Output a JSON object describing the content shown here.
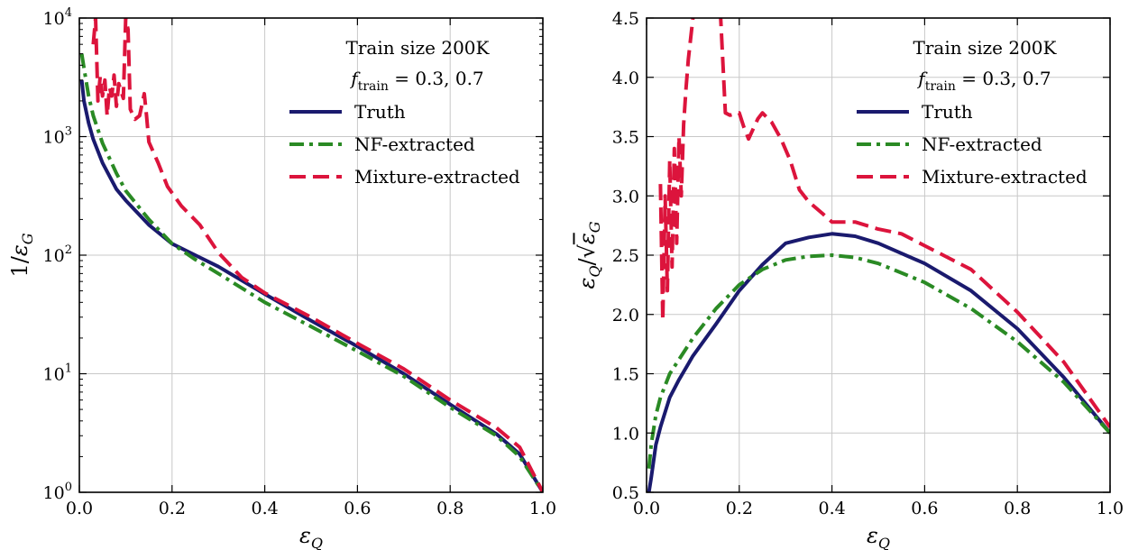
{
  "colors": {
    "truth": "#1a1a6e",
    "nf": "#2a8a24",
    "mixture": "#dc143c"
  },
  "chart_data": [
    {
      "type": "line",
      "title": "",
      "xlabel": "εQ",
      "ylabel": "1/εG",
      "yscale": "log",
      "xlim": [
        0.0,
        1.0
      ],
      "ylim": [
        1,
        10000
      ],
      "grid": true,
      "legend_placement": "top-right",
      "x_ticks": [
        0.0,
        0.2,
        0.4,
        0.6,
        0.8,
        1.0
      ],
      "x_tick_labels": [
        "0.0",
        "0.2",
        "0.4",
        "0.6",
        "0.8",
        "1.0"
      ],
      "y_ticks": [
        1,
        10,
        100,
        1000,
        10000
      ],
      "y_tick_labels": [
        "10^0",
        "10^1",
        "10^2",
        "10^3",
        "10^4"
      ],
      "annotations": [
        "Train size 200K",
        "f_train = 0.3, 0.7"
      ],
      "series": [
        {
          "name": "Truth",
          "style": "solid",
          "color_key": "truth",
          "x": [
            0.005,
            0.01,
            0.02,
            0.03,
            0.05,
            0.08,
            0.1,
            0.15,
            0.2,
            0.25,
            0.3,
            0.4,
            0.5,
            0.6,
            0.7,
            0.8,
            0.9,
            0.95,
            1.0
          ],
          "y": [
            3000,
            2000,
            1300,
            950,
            600,
            360,
            290,
            180,
            125,
            100,
            80,
            47,
            28,
            17,
            10,
            5.5,
            3.1,
            2.1,
            1.0
          ]
        },
        {
          "name": "NF-extracted",
          "style": "dashdot",
          "color_key": "nf",
          "x": [
            0.005,
            0.01,
            0.02,
            0.03,
            0.05,
            0.08,
            0.1,
            0.15,
            0.2,
            0.25,
            0.3,
            0.4,
            0.5,
            0.6,
            0.7,
            0.8,
            0.9,
            0.95,
            1.0
          ],
          "y": [
            5000,
            3800,
            2200,
            1500,
            880,
            490,
            350,
            200,
            125,
            92,
            70,
            40,
            25,
            15.5,
            9.5,
            5.2,
            3.0,
            2.0,
            1.0
          ]
        },
        {
          "name": "Mixture-extracted",
          "style": "dashed",
          "color_key": "mixture",
          "x": [
            0.03,
            0.035,
            0.04,
            0.045,
            0.05,
            0.055,
            0.06,
            0.065,
            0.07,
            0.075,
            0.08,
            0.085,
            0.09,
            0.095,
            0.1,
            0.105,
            0.11,
            0.12,
            0.13,
            0.14,
            0.145,
            0.15,
            0.17,
            0.19,
            0.22,
            0.26,
            0.3,
            0.35,
            0.4,
            0.5,
            0.6,
            0.7,
            0.8,
            0.9,
            0.95,
            1.0
          ],
          "y": [
            6000,
            10000,
            2000,
            3200,
            2200,
            3000,
            1500,
            2600,
            2200,
            3300,
            1800,
            2800,
            2400,
            2100,
            10000,
            8000,
            1700,
            1400,
            1500,
            2300,
            1500,
            900,
            600,
            380,
            260,
            180,
            105,
            65,
            48,
            30,
            18,
            11,
            6,
            3.5,
            2.4,
            1.0
          ]
        }
      ]
    },
    {
      "type": "line",
      "title": "",
      "xlabel": "εQ",
      "ylabel": "εQ/√εG",
      "yscale": "linear",
      "xlim": [
        0.0,
        1.0
      ],
      "ylim": [
        0.5,
        4.5
      ],
      "grid": true,
      "legend_placement": "top-right",
      "x_ticks": [
        0.0,
        0.2,
        0.4,
        0.6,
        0.8,
        1.0
      ],
      "x_tick_labels": [
        "0.0",
        "0.2",
        "0.4",
        "0.6",
        "0.8",
        "1.0"
      ],
      "y_ticks": [
        0.5,
        1.0,
        1.5,
        2.0,
        2.5,
        3.0,
        3.5,
        4.0,
        4.5
      ],
      "y_tick_labels": [
        "0.5",
        "1.0",
        "1.5",
        "2.0",
        "2.5",
        "3.0",
        "3.5",
        "4.0",
        "4.5"
      ],
      "annotations": [
        "Train size 200K",
        "f_train = 0.3, 0.7"
      ],
      "series": [
        {
          "name": "Truth",
          "style": "solid",
          "color_key": "truth",
          "x": [
            0.005,
            0.01,
            0.02,
            0.03,
            0.05,
            0.07,
            0.1,
            0.15,
            0.2,
            0.25,
            0.3,
            0.35,
            0.4,
            0.45,
            0.5,
            0.6,
            0.7,
            0.8,
            0.9,
            1.0
          ],
          "y": [
            0.5,
            0.62,
            0.9,
            1.05,
            1.3,
            1.45,
            1.65,
            1.92,
            2.2,
            2.42,
            2.6,
            2.65,
            2.68,
            2.66,
            2.6,
            2.43,
            2.2,
            1.88,
            1.47,
            1.0
          ]
        },
        {
          "name": "NF-extracted",
          "style": "dashdot",
          "color_key": "nf",
          "x": [
            0.005,
            0.01,
            0.02,
            0.03,
            0.05,
            0.07,
            0.1,
            0.15,
            0.2,
            0.25,
            0.3,
            0.35,
            0.4,
            0.45,
            0.5,
            0.6,
            0.7,
            0.8,
            0.9,
            1.0
          ],
          "y": [
            0.7,
            0.9,
            1.15,
            1.3,
            1.5,
            1.62,
            1.8,
            2.05,
            2.25,
            2.38,
            2.46,
            2.49,
            2.5,
            2.48,
            2.43,
            2.27,
            2.05,
            1.77,
            1.43,
            1.0
          ]
        },
        {
          "name": "Mixture-extracted",
          "style": "dashed",
          "color_key": "mixture",
          "x": [
            0.03,
            0.035,
            0.04,
            0.045,
            0.05,
            0.055,
            0.06,
            0.065,
            0.07,
            0.075,
            0.08,
            0.085,
            0.09,
            0.1,
            0.12,
            0.14,
            0.16,
            0.17,
            0.18,
            0.2,
            0.21,
            0.22,
            0.24,
            0.25,
            0.27,
            0.29,
            0.31,
            0.33,
            0.35,
            0.38,
            0.4,
            0.45,
            0.5,
            0.55,
            0.6,
            0.7,
            0.8,
            0.9,
            1.0
          ],
          "y": [
            3.1,
            1.95,
            3.0,
            2.2,
            3.3,
            2.4,
            3.4,
            2.6,
            3.5,
            3.0,
            3.6,
            3.9,
            4.15,
            4.5,
            4.8,
            4.9,
            4.5,
            3.7,
            3.68,
            3.7,
            3.58,
            3.48,
            3.65,
            3.7,
            3.62,
            3.48,
            3.3,
            3.05,
            2.95,
            2.85,
            2.78,
            2.78,
            2.72,
            2.68,
            2.58,
            2.38,
            2.02,
            1.6,
            1.05
          ]
        }
      ]
    }
  ]
}
